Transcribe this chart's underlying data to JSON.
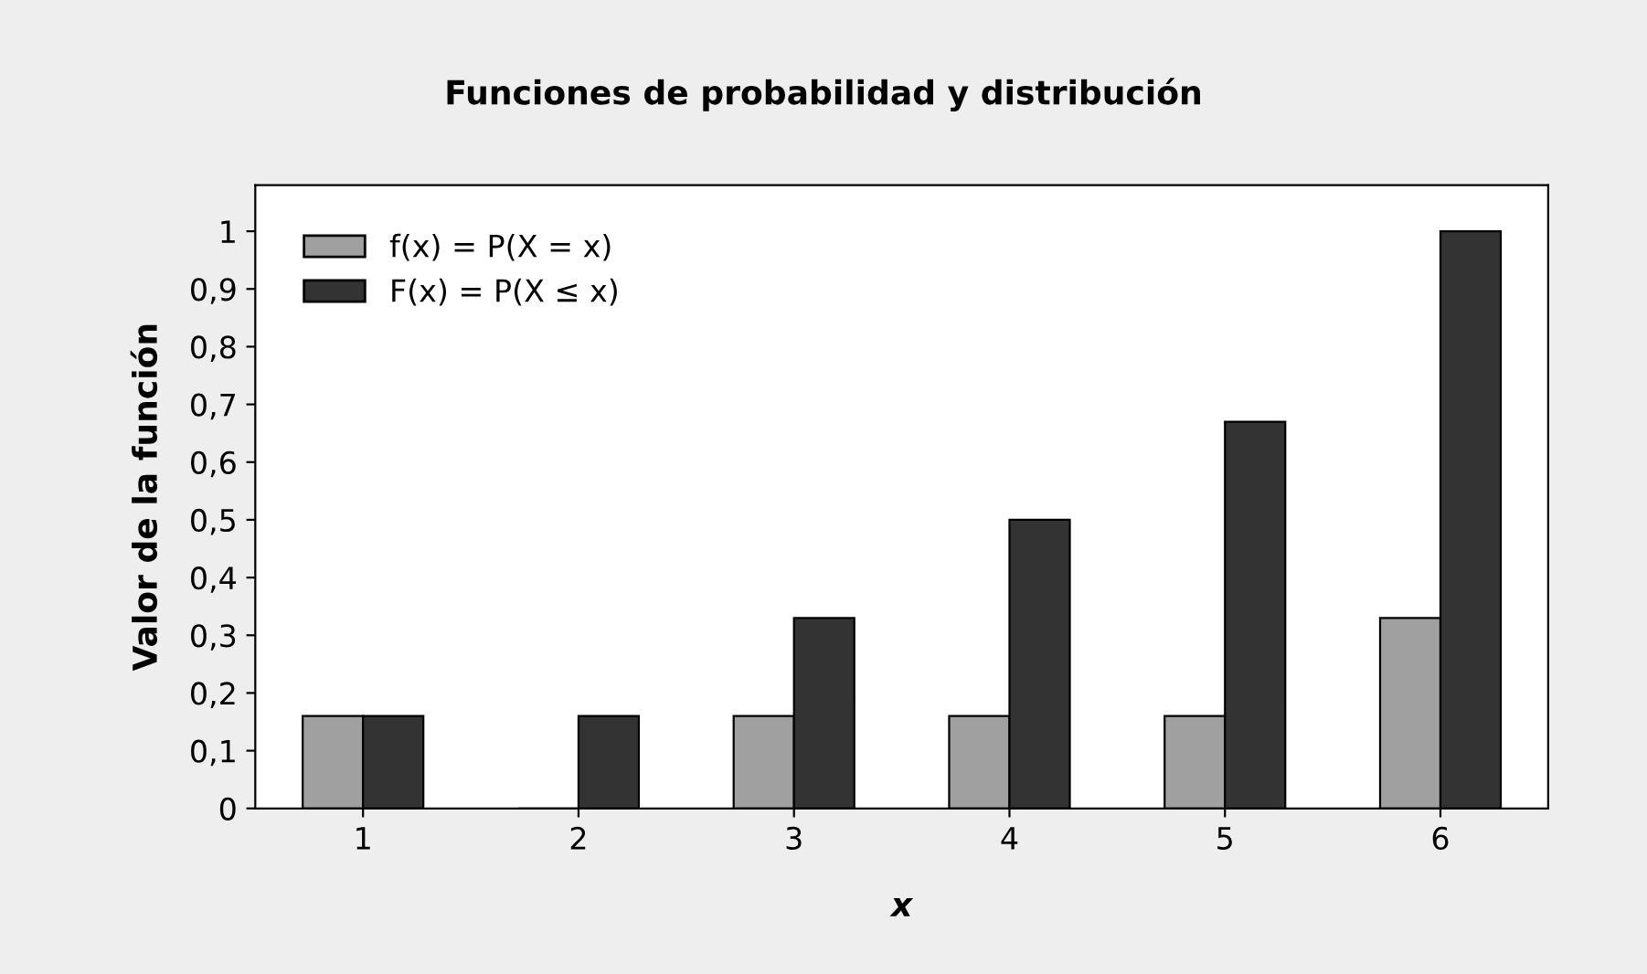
{
  "chart_data": {
    "type": "bar",
    "title": "Funciones de probabilidad y distribución",
    "xlabel": "x",
    "ylabel": "Valor de la función",
    "categories": [
      "1",
      "2",
      "3",
      "4",
      "5",
      "6"
    ],
    "series": [
      {
        "name": "f(x) = P(X = x)",
        "color": "#a0a0a0",
        "values": [
          0.16,
          0,
          0.16,
          0.16,
          0.16,
          0.33
        ]
      },
      {
        "name": "F(x) = P(X ≤ x)",
        "color": "#333333",
        "values": [
          0.16,
          0.16,
          0.33,
          0.5,
          0.67,
          1
        ]
      }
    ],
    "ylim": [
      0,
      1.08
    ],
    "yticks": [
      0,
      {
        "value": 0.1,
        "label": "0,1"
      },
      {
        "value": 0.2,
        "label": "0,2"
      },
      {
        "value": 0.3,
        "label": "0,3"
      },
      {
        "value": 0.4,
        "label": "0,4"
      },
      {
        "value": 0.5,
        "label": "0,5"
      },
      {
        "value": 0.6,
        "label": "0,6"
      },
      {
        "value": 0.7,
        "label": "0,7"
      },
      {
        "value": 0.8,
        "label": "0,8"
      },
      {
        "value": 0.9,
        "label": "0,9"
      },
      1
    ],
    "grid": false,
    "legend": "top left"
  }
}
